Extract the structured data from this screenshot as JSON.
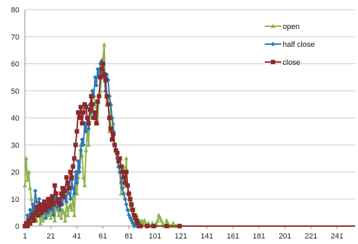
{
  "chart_data": {
    "type": "line",
    "title": "",
    "xlabel": "",
    "ylabel": "",
    "xlim": [
      1,
      255
    ],
    "ylim": [
      0,
      80
    ],
    "x_ticks": [
      "1",
      "21",
      "41",
      "61",
      "81",
      "101",
      "121",
      "141",
      "161",
      "181",
      "201",
      "221",
      "241"
    ],
    "y_ticks": [
      "0",
      "10",
      "20",
      "30",
      "40",
      "50",
      "60",
      "70",
      "80"
    ],
    "grid": "horizontal",
    "legend_position": "top-right",
    "series": [
      {
        "name": "open",
        "color": "#8db44a",
        "marker": "triangle",
        "points": [
          [
            1,
            15
          ],
          [
            2,
            25
          ],
          [
            3,
            17
          ],
          [
            4,
            20
          ],
          [
            5,
            14
          ],
          [
            6,
            10
          ],
          [
            7,
            6
          ],
          [
            8,
            3
          ],
          [
            9,
            4
          ],
          [
            10,
            2
          ],
          [
            11,
            6
          ],
          [
            12,
            4
          ],
          [
            13,
            1
          ],
          [
            14,
            4
          ],
          [
            15,
            2
          ],
          [
            16,
            7
          ],
          [
            17,
            3
          ],
          [
            18,
            5
          ],
          [
            19,
            4
          ],
          [
            20,
            6
          ],
          [
            21,
            3
          ],
          [
            22,
            7
          ],
          [
            23,
            5
          ],
          [
            24,
            2
          ],
          [
            25,
            8
          ],
          [
            26,
            6
          ],
          [
            27,
            4
          ],
          [
            28,
            9
          ],
          [
            29,
            3
          ],
          [
            30,
            6
          ],
          [
            31,
            5
          ],
          [
            32,
            2
          ],
          [
            33,
            9
          ],
          [
            34,
            4
          ],
          [
            35,
            7
          ],
          [
            36,
            8
          ],
          [
            37,
            6
          ],
          [
            38,
            11
          ],
          [
            39,
            4
          ],
          [
            40,
            15
          ],
          [
            41,
            12
          ],
          [
            42,
            18
          ],
          [
            43,
            22
          ],
          [
            44,
            30
          ],
          [
            45,
            26
          ],
          [
            46,
            18
          ],
          [
            47,
            15
          ],
          [
            48,
            28
          ],
          [
            49,
            35
          ],
          [
            50,
            30
          ],
          [
            51,
            45
          ],
          [
            52,
            40
          ],
          [
            53,
            50
          ],
          [
            54,
            48
          ],
          [
            55,
            45
          ],
          [
            56,
            44
          ],
          [
            57,
            38
          ],
          [
            58,
            48
          ],
          [
            59,
            50
          ],
          [
            60,
            55
          ],
          [
            61,
            62
          ],
          [
            62,
            67
          ],
          [
            63,
            50
          ],
          [
            64,
            45
          ],
          [
            65,
            48
          ],
          [
            66,
            35
          ],
          [
            67,
            45
          ],
          [
            68,
            40
          ],
          [
            69,
            38
          ],
          [
            70,
            30
          ],
          [
            71,
            28
          ],
          [
            72,
            26
          ],
          [
            73,
            22
          ],
          [
            74,
            20
          ],
          [
            75,
            12
          ],
          [
            76,
            18
          ],
          [
            77,
            22
          ],
          [
            78,
            15
          ],
          [
            79,
            25
          ],
          [
            80,
            12
          ],
          [
            81,
            10
          ],
          [
            82,
            6
          ],
          [
            83,
            8
          ],
          [
            84,
            5
          ],
          [
            85,
            3
          ],
          [
            86,
            2
          ],
          [
            87,
            4
          ],
          [
            88,
            1
          ],
          [
            89,
            2
          ],
          [
            90,
            0
          ],
          [
            91,
            2
          ],
          [
            92,
            1
          ],
          [
            93,
            2
          ],
          [
            94,
            1
          ],
          [
            95,
            0
          ],
          [
            96,
            1
          ],
          [
            97,
            0
          ],
          [
            98,
            0
          ],
          [
            99,
            1
          ],
          [
            100,
            0
          ],
          [
            101,
            0
          ],
          [
            102,
            1
          ],
          [
            103,
            2
          ],
          [
            104,
            4
          ],
          [
            105,
            3
          ],
          [
            106,
            2
          ],
          [
            107,
            1
          ],
          [
            108,
            0
          ],
          [
            109,
            0
          ],
          [
            110,
            2
          ],
          [
            111,
            1
          ],
          [
            112,
            0
          ],
          [
            113,
            0
          ],
          [
            114,
            0
          ],
          [
            115,
            1
          ],
          [
            116,
            0
          ],
          [
            117,
            0
          ],
          [
            118,
            0
          ],
          [
            119,
            0
          ],
          [
            120,
            0
          ],
          [
            130,
            0
          ],
          [
            150,
            0
          ],
          [
            170,
            0
          ],
          [
            190,
            0
          ],
          [
            210,
            0
          ],
          [
            230,
            0
          ],
          [
            255,
            0
          ]
        ]
      },
      {
        "name": "half close",
        "color": "#2e75b6",
        "marker": "diamond",
        "points": [
          [
            1,
            0
          ],
          [
            2,
            1
          ],
          [
            3,
            4
          ],
          [
            4,
            2
          ],
          [
            5,
            6
          ],
          [
            6,
            3
          ],
          [
            7,
            8
          ],
          [
            8,
            5
          ],
          [
            9,
            13
          ],
          [
            10,
            9
          ],
          [
            11,
            6
          ],
          [
            12,
            10
          ],
          [
            13,
            4
          ],
          [
            14,
            8
          ],
          [
            15,
            6
          ],
          [
            16,
            9
          ],
          [
            17,
            3
          ],
          [
            18,
            7
          ],
          [
            19,
            5
          ],
          [
            20,
            10
          ],
          [
            21,
            6
          ],
          [
            22,
            8
          ],
          [
            23,
            4
          ],
          [
            24,
            9
          ],
          [
            25,
            12
          ],
          [
            26,
            7
          ],
          [
            27,
            10
          ],
          [
            28,
            6
          ],
          [
            29,
            12
          ],
          [
            30,
            8
          ],
          [
            31,
            14
          ],
          [
            32,
            10
          ],
          [
            33,
            9
          ],
          [
            34,
            15
          ],
          [
            35,
            12
          ],
          [
            36,
            10
          ],
          [
            37,
            17
          ],
          [
            38,
            14
          ],
          [
            39,
            12
          ],
          [
            40,
            20
          ],
          [
            41,
            16
          ],
          [
            42,
            24
          ],
          [
            43,
            20
          ],
          [
            44,
            28
          ],
          [
            45,
            32
          ],
          [
            46,
            30
          ],
          [
            47,
            38
          ],
          [
            48,
            35
          ],
          [
            49,
            40
          ],
          [
            50,
            36
          ],
          [
            51,
            45
          ],
          [
            52,
            42
          ],
          [
            53,
            50
          ],
          [
            54,
            48
          ],
          [
            55,
            55
          ],
          [
            56,
            52
          ],
          [
            57,
            58
          ],
          [
            58,
            55
          ],
          [
            59,
            60
          ],
          [
            60,
            61
          ],
          [
            61,
            58
          ],
          [
            62,
            55
          ],
          [
            63,
            50
          ],
          [
            64,
            56
          ],
          [
            65,
            54
          ],
          [
            66,
            48
          ],
          [
            67,
            45
          ],
          [
            68,
            40
          ],
          [
            69,
            35
          ],
          [
            70,
            30
          ],
          [
            71,
            28
          ],
          [
            72,
            25
          ],
          [
            73,
            22
          ],
          [
            74,
            20
          ],
          [
            75,
            16
          ],
          [
            76,
            14
          ],
          [
            77,
            12
          ],
          [
            78,
            10
          ],
          [
            79,
            8
          ],
          [
            80,
            6
          ],
          [
            81,
            4
          ],
          [
            82,
            3
          ],
          [
            83,
            2
          ],
          [
            84,
            1
          ],
          [
            85,
            0
          ],
          [
            86,
            1
          ],
          [
            87,
            0
          ],
          [
            88,
            0
          ],
          [
            89,
            0
          ],
          [
            90,
            0
          ],
          [
            95,
            0
          ],
          [
            100,
            0
          ],
          [
            110,
            0
          ],
          [
            120,
            0
          ],
          [
            140,
            0
          ],
          [
            160,
            0
          ],
          [
            180,
            0
          ],
          [
            200,
            0
          ],
          [
            220,
            0
          ],
          [
            240,
            0
          ],
          [
            255,
            0
          ]
        ]
      },
      {
        "name": "close",
        "color": "#8b2a2a",
        "marker": "square",
        "points": [
          [
            1,
            0
          ],
          [
            2,
            1
          ],
          [
            3,
            0
          ],
          [
            4,
            2
          ],
          [
            5,
            1
          ],
          [
            6,
            3
          ],
          [
            7,
            4
          ],
          [
            8,
            2
          ],
          [
            9,
            5
          ],
          [
            10,
            7
          ],
          [
            11,
            4
          ],
          [
            12,
            6
          ],
          [
            13,
            8
          ],
          [
            14,
            5
          ],
          [
            15,
            7
          ],
          [
            16,
            9
          ],
          [
            17,
            6
          ],
          [
            18,
            8
          ],
          [
            19,
            10
          ],
          [
            20,
            7
          ],
          [
            21,
            9
          ],
          [
            22,
            11
          ],
          [
            23,
            8
          ],
          [
            24,
            15
          ],
          [
            25,
            12
          ],
          [
            26,
            9
          ],
          [
            27,
            10
          ],
          [
            28,
            8
          ],
          [
            29,
            12
          ],
          [
            30,
            14
          ],
          [
            31,
            11
          ],
          [
            32,
            13
          ],
          [
            33,
            18
          ],
          [
            34,
            16
          ],
          [
            35,
            14
          ],
          [
            36,
            20
          ],
          [
            37,
            18
          ],
          [
            38,
            22
          ],
          [
            39,
            25
          ],
          [
            40,
            30
          ],
          [
            41,
            35
          ],
          [
            42,
            42
          ],
          [
            43,
            40
          ],
          [
            44,
            44
          ],
          [
            45,
            38
          ],
          [
            46,
            42
          ],
          [
            47,
            45
          ],
          [
            48,
            44
          ],
          [
            49,
            40
          ],
          [
            50,
            38
          ],
          [
            51,
            43
          ],
          [
            52,
            48
          ],
          [
            53,
            45
          ],
          [
            54,
            40
          ],
          [
            55,
            42
          ],
          [
            56,
            38
          ],
          [
            57,
            46
          ],
          [
            58,
            48
          ],
          [
            59,
            55
          ],
          [
            60,
            58
          ],
          [
            61,
            60
          ],
          [
            62,
            56
          ],
          [
            63,
            54
          ],
          [
            64,
            48
          ],
          [
            65,
            45
          ],
          [
            66,
            40
          ],
          [
            67,
            36
          ],
          [
            68,
            32
          ],
          [
            69,
            34
          ],
          [
            70,
            30
          ],
          [
            71,
            28
          ],
          [
            72,
            27
          ],
          [
            73,
            24
          ],
          [
            74,
            25
          ],
          [
            75,
            22
          ],
          [
            76,
            20
          ],
          [
            77,
            18
          ],
          [
            78,
            16
          ],
          [
            79,
            20
          ],
          [
            80,
            15
          ],
          [
            81,
            12
          ],
          [
            82,
            10
          ],
          [
            83,
            8
          ],
          [
            84,
            6
          ],
          [
            85,
            4
          ],
          [
            86,
            3
          ],
          [
            87,
            2
          ],
          [
            88,
            1
          ],
          [
            89,
            0
          ],
          [
            90,
            0
          ],
          [
            95,
            0
          ],
          [
            100,
            0
          ],
          [
            110,
            0
          ],
          [
            120,
            0
          ],
          [
            140,
            0
          ],
          [
            160,
            0
          ],
          [
            180,
            0
          ],
          [
            200,
            0
          ],
          [
            220,
            0
          ],
          [
            240,
            0
          ],
          [
            255,
            0
          ]
        ]
      }
    ]
  }
}
